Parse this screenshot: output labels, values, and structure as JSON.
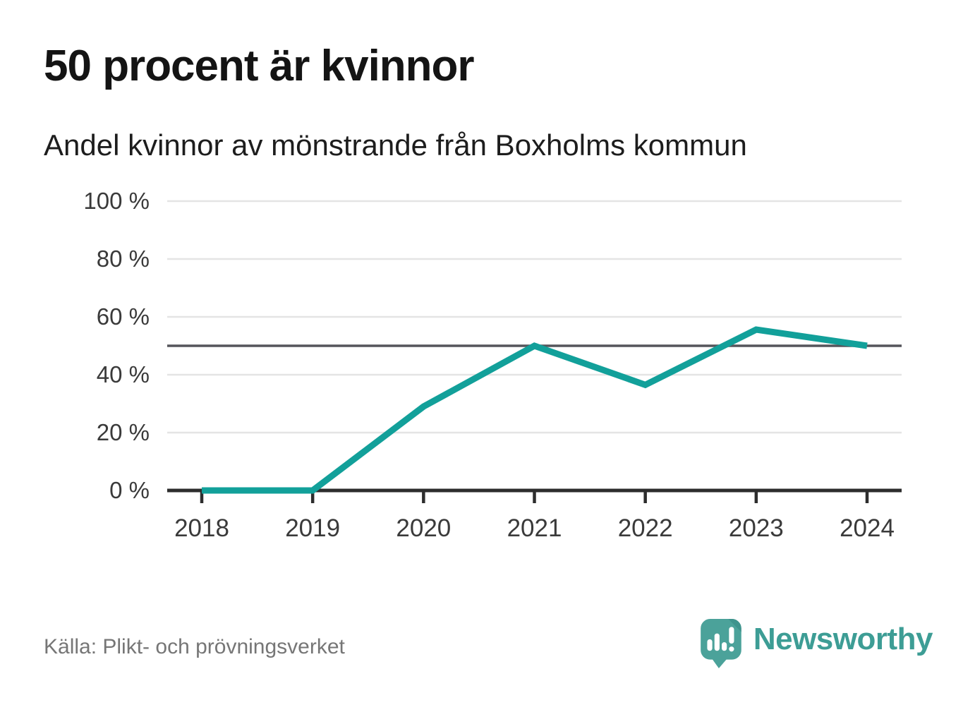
{
  "page": {
    "title": "50 procent är kvinnor",
    "subtitle": "Andel kvinnor av mönstrande från Boxholms kommun",
    "source": "Källa: Plikt- och prövningsverket",
    "brand_name": "Newsworthy"
  },
  "colors": {
    "line": "#12a09a",
    "grid": "#e4e4e4",
    "reference_line": "#55555b",
    "axis": "#2d2d2d",
    "tick_text": "#3a3a3a",
    "source_text": "#767676",
    "logo": "#4ba29a",
    "logo_fold": "#3f948d",
    "logo_glyph": "#ffffff",
    "wordmark": "#3d9d95"
  },
  "icons": {
    "logo": "newsworthy-speech-bubble-bar-chart-icon"
  },
  "chart_data": {
    "type": "line",
    "title": "50 procent är kvinnor",
    "subtitle": "Andel kvinnor av mönstrande från Boxholms kommun",
    "categories": [
      "2018",
      "2019",
      "2020",
      "2021",
      "2022",
      "2023",
      "2024"
    ],
    "series": [
      {
        "name": "Andel kvinnor av mönstrande",
        "values": [
          0,
          0,
          29,
          50,
          36.5,
          55.6,
          50
        ]
      }
    ],
    "unit": "%",
    "ylim": [
      0,
      100
    ],
    "yticks": [
      0,
      20,
      40,
      60,
      80,
      100
    ],
    "ytick_suffix": " %",
    "reference_line": 50,
    "grid": true,
    "legend": false,
    "source": "Källa: Plikt- och prövningsverket"
  }
}
